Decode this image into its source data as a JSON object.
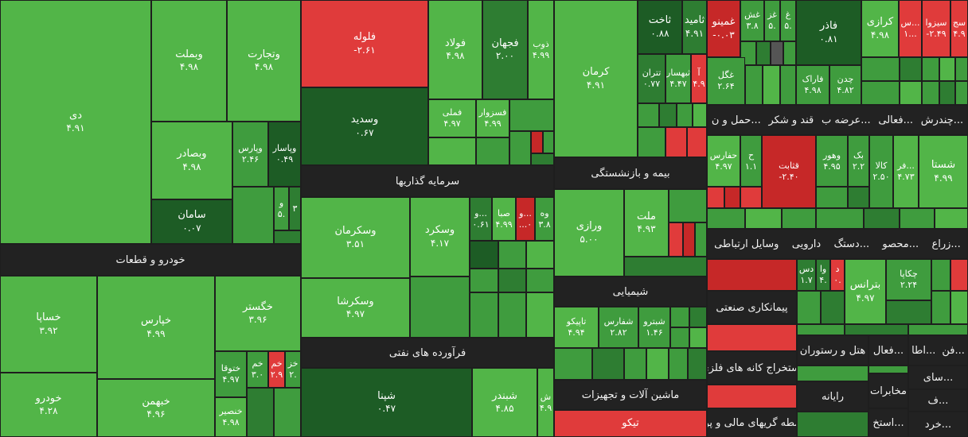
{
  "sectors": {
    "khodro": "خودرو و قطعات",
    "sarmaye": "سرمایه گذاریها",
    "faravarde": "فرآورده های نفتی",
    "bime": "بیمه و بازنشستگی",
    "shimiyaei": "شیمیایی",
    "mashin": "ماشین آلات و تجهیزات",
    "tiko": "تیکو",
    "row1": [
      "حمل و ن...",
      "قند و شکر",
      "عرضه ب...",
      "فعالی...",
      "چندرش..."
    ],
    "row2": [
      "وسایل ارتباطی",
      "دارویی",
      "دستگ...",
      "محصو...",
      "زراع..."
    ],
    "peymankari": "پیمانکاری صنعتی",
    "estekhraj": "استخراج کانه های فلزی",
    "vaseteh": "واسطه گریهای مالی و پولی",
    "hotel": "هتل و رستوران",
    "fali": "فعال...",
    "fan": "فن...",
    "ata": "اطا...",
    "rayane": "رایانه",
    "mokhaberat": "مخابرات",
    "sai": "سای...",
    "estekh": "استخ...",
    "khard": "خرد...",
    "fa": "ف..."
  },
  "tiles": {
    "di": {
      "s": "دی",
      "v": "۴.۹۱"
    },
    "vebmelat": {
      "s": "وبملت",
      "v": "۴.۹۸"
    },
    "vetejarat": {
      "s": "وتجارت",
      "v": "۴.۹۸"
    },
    "vebsader": {
      "s": "وبصادر",
      "v": "۴.۹۸"
    },
    "vepars": {
      "s": "وپارس",
      "v": "۲.۴۶"
    },
    "vepasar": {
      "s": "وپاسار",
      "v": "۰.۴۹"
    },
    "v_small": {
      "s": "و",
      "v": "۵."
    },
    "n3": {
      "s": "۳",
      "v": ""
    },
    "saman": {
      "s": "سامان",
      "v": "۰.۰۷"
    },
    "felole": {
      "s": "فلوله",
      "v": "-۲.۶۱"
    },
    "vesadid": {
      "s": "وسدید",
      "v": "۰.۶۷"
    },
    "fulad": {
      "s": "فولاد",
      "v": "۴.۹۸"
    },
    "fajahan": {
      "s": "فجهان",
      "v": "۲.۰۰"
    },
    "zob": {
      "s": "ذوب",
      "v": "۴.۹۹"
    },
    "fameli": {
      "s": "فملی",
      "v": "۴.۹۷"
    },
    "fasazvar": {
      "s": "فسزوار",
      "v": "۴.۹۹"
    },
    "kerman": {
      "s": "کرمان",
      "v": "۴.۹۱"
    },
    "takhet": {
      "s": "ثاخت",
      "v": "۰.۸۸"
    },
    "tamid": {
      "s": "ثامید",
      "v": "۴.۹۱"
    },
    "ghomino": {
      "s": "غمینو",
      "v": "-۰.۰۳"
    },
    "ghash": {
      "s": "غش",
      "v": "۳.۸"
    },
    "ghaz": {
      "s": "غز",
      "v": "۵."
    },
    "gh": {
      "s": "غ",
      "v": "۵."
    },
    "fakher": {
      "s": "فاذر",
      "v": "۰.۸۱"
    },
    "karazi": {
      "s": "کرازی",
      "v": "۴.۹۸"
    },
    "sdots": {
      "s": "س...",
      "v": "۱..."
    },
    "sizova": {
      "s": "سیزوا",
      "v": "-۲.۴۹"
    },
    "saj": {
      "s": "سج",
      "v": "۴.۹"
    },
    "tetran": {
      "s": "تتران",
      "v": "۰.۷۷"
    },
    "teheshar": {
      "s": "ثبهسار",
      "v": "۴.۴۷"
    },
    "a": {
      "s": "آ",
      "v": "۴.۹"
    },
    "ghegol": {
      "s": "غگل",
      "v": "۲.۶۴"
    },
    "farak": {
      "s": "فاراک",
      "v": "۴.۹۸"
    },
    "chedn": {
      "s": "چدن",
      "v": "۴.۸۲"
    },
    "vekarman": {
      "s": "وسکرمان",
      "v": "۳.۵۱"
    },
    "vesekerd": {
      "s": "وسکرد",
      "v": "۴.۱۷"
    },
    "vodots": {
      "s": "و...",
      "v": "۰.۶۱"
    },
    "saba": {
      "s": "صبا",
      "v": "۴.۹۹"
    },
    "wodots": {
      "s": "و...",
      "v": "...۰"
    },
    "vah": {
      "s": "وه",
      "v": "۳.۸"
    },
    "vesekersha": {
      "s": "وسکرشا",
      "v": "۴.۹۷"
    },
    "khesapa": {
      "s": "خساپا",
      "v": "۳.۹۲"
    },
    "kheparis": {
      "s": "خپارس",
      "v": "۴.۹۹"
    },
    "khegostar": {
      "s": "خگستر",
      "v": "۳.۹۶"
    },
    "khotoga": {
      "s": "ختوقا",
      "v": "۴.۹۷"
    },
    "khom": {
      "s": "خم",
      "v": "۳.۰"
    },
    "khom2": {
      "s": "خم",
      "v": "۲.۹"
    },
    "khaz": {
      "s": "خز",
      "v": "۲."
    },
    "khodro": {
      "s": "خودرو",
      "v": "۴.۲۸"
    },
    "khebahman": {
      "s": "خبهمن",
      "v": "۴.۹۶"
    },
    "khansir": {
      "s": "خنصیر",
      "v": "۴.۹۸"
    },
    "shapna": {
      "s": "شپنا",
      "v": "۰.۴۷"
    },
    "shebandar": {
      "s": "شبندر",
      "v": "۴.۸۵"
    },
    "sh": {
      "s": "ش",
      "v": "۴.۹"
    },
    "vorazi": {
      "s": "ورازی",
      "v": "۵.۰۰"
    },
    "mellat": {
      "s": "ملت",
      "v": "۴.۹۳"
    },
    "taipiko": {
      "s": "تاپیکو",
      "v": "۴.۹۴"
    },
    "shefaras": {
      "s": "شفارس",
      "v": "۲.۸۲"
    },
    "shebitro": {
      "s": "شبترو",
      "v": "۱.۴۶"
    },
    "hafaras": {
      "s": "حفارس",
      "v": "۴.۹۷"
    },
    "h": {
      "s": "ح",
      "v": "۱.۱"
    },
    "ghasabet": {
      "s": "قثابت",
      "v": "-۲.۴۰"
    },
    "vahor": {
      "s": "وهور",
      "v": "۴.۹۵"
    },
    "bak": {
      "s": "بک",
      "v": "۲.۲"
    },
    "kala": {
      "s": "کالا",
      "v": "۲.۵۰"
    },
    "fardots": {
      "s": "فر...",
      "v": "۴.۷۳"
    },
    "shasta": {
      "s": "شستا",
      "v": "۴.۹۹"
    },
    "das": {
      "s": "دس",
      "v": "۱.۷"
    },
    "va": {
      "s": "وا",
      "v": "۴."
    },
    "d": {
      "s": "د",
      "v": "۰."
    },
    "betrans": {
      "s": "بترانس",
      "v": "۴.۹۷"
    },
    "chakapa": {
      "s": "چکاپا",
      "v": "۲.۲۴"
    }
  }
}
